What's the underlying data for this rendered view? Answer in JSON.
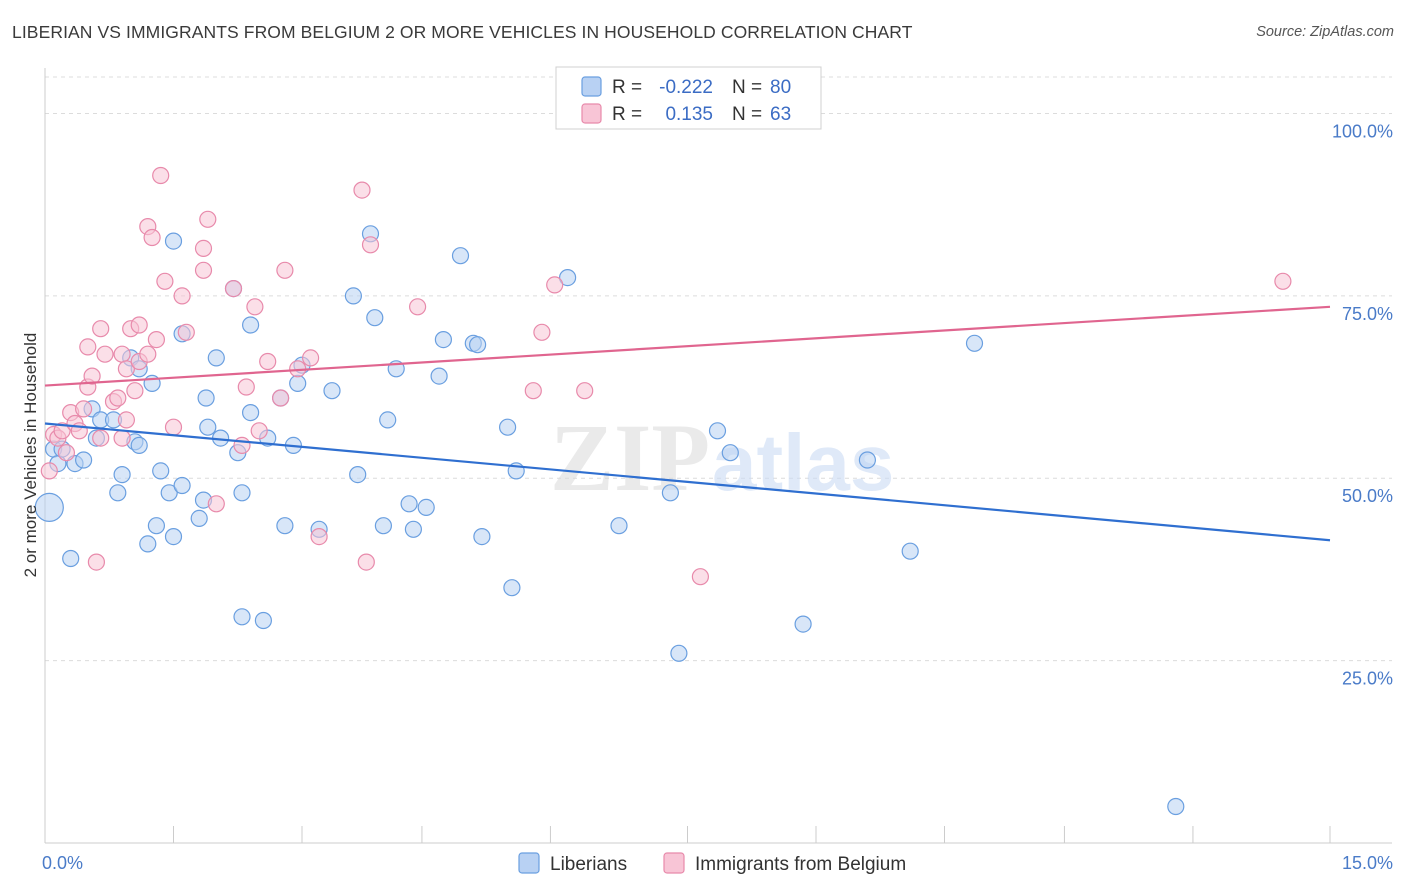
{
  "title": "LIBERIAN VS IMMIGRANTS FROM BELGIUM 2 OR MORE VEHICLES IN HOUSEHOLD CORRELATION CHART",
  "source": "Source: ZipAtlas.com",
  "watermark": {
    "zip": "ZIP",
    "atlas": "atlas"
  },
  "chart_data": {
    "type": "scatter",
    "ylabel": "2 or more Vehicles in Household",
    "xlim": [
      0,
      15
    ],
    "ylim": [
      0,
      105
    ],
    "x_ticks": [
      {
        "value": 0,
        "label": "0.0%"
      },
      {
        "value": 15,
        "label": "15.0%"
      }
    ],
    "x_minor_ticks": [
      1.5,
      3,
      4.4,
      5.9,
      7.5,
      9,
      10.5,
      11.9,
      13.4
    ],
    "y_ticks": [
      {
        "value": 25,
        "label": "25.0%"
      },
      {
        "value": 50,
        "label": "50.0%"
      },
      {
        "value": 75,
        "label": "75.0%"
      },
      {
        "value": 100,
        "label": "100.0%"
      }
    ],
    "grid": "horizontal dashed",
    "legend_stats": [
      {
        "r_label": "R =",
        "r_value": "-0.222",
        "n_label": "N =",
        "n_value": "80",
        "color": "#6a9fe0",
        "fill": "#b8d1f3"
      },
      {
        "r_label": "R =",
        "r_value": "0.135",
        "n_label": "N =",
        "n_value": "63",
        "color": "#e88aab",
        "fill": "#f8c5d6"
      }
    ],
    "series": [
      {
        "name": "Liberians",
        "color": "#6a9fe0",
        "fill": "#b8d1f3",
        "line_color": "#2f6fd0",
        "trend": [
          [
            0,
            57.5
          ],
          [
            15,
            41.5
          ]
        ],
        "points": [
          [
            0.05,
            46
          ],
          [
            0.1,
            54
          ],
          [
            0.15,
            52
          ],
          [
            0.2,
            54
          ],
          [
            0.3,
            39
          ],
          [
            0.35,
            52
          ],
          [
            0.45,
            52.5
          ],
          [
            0.55,
            59.5
          ],
          [
            0.6,
            55.5
          ],
          [
            0.65,
            58
          ],
          [
            0.8,
            58
          ],
          [
            0.85,
            48
          ],
          [
            0.9,
            50.5
          ],
          [
            1.0,
            66.5
          ],
          [
            1.05,
            55
          ],
          [
            1.1,
            54.5
          ],
          [
            1.1,
            65
          ],
          [
            1.2,
            41
          ],
          [
            1.25,
            63
          ],
          [
            1.3,
            43.5
          ],
          [
            1.35,
            51
          ],
          [
            1.45,
            48
          ],
          [
            1.5,
            42
          ],
          [
            1.5,
            82.5
          ],
          [
            1.6,
            49
          ],
          [
            1.6,
            69.8
          ],
          [
            1.8,
            44.5
          ],
          [
            1.85,
            47
          ],
          [
            1.88,
            61
          ],
          [
            1.9,
            57
          ],
          [
            2.0,
            66.5
          ],
          [
            2.05,
            55.5
          ],
          [
            2.2,
            76
          ],
          [
            2.25,
            53.5
          ],
          [
            2.3,
            31
          ],
          [
            2.3,
            48
          ],
          [
            2.4,
            71
          ],
          [
            2.4,
            59
          ],
          [
            2.55,
            30.5
          ],
          [
            2.6,
            55.5
          ],
          [
            2.75,
            61
          ],
          [
            2.8,
            43.5
          ],
          [
            2.9,
            54.5
          ],
          [
            2.95,
            63
          ],
          [
            3.0,
            65.5
          ],
          [
            3.2,
            43
          ],
          [
            3.35,
            62
          ],
          [
            3.6,
            75
          ],
          [
            3.65,
            50.5
          ],
          [
            3.8,
            83.5
          ],
          [
            3.85,
            72
          ],
          [
            3.95,
            43.5
          ],
          [
            4.0,
            58
          ],
          [
            4.1,
            65
          ],
          [
            4.25,
            46.5
          ],
          [
            4.3,
            43
          ],
          [
            4.45,
            46
          ],
          [
            4.6,
            64
          ],
          [
            4.65,
            69
          ],
          [
            4.85,
            80.5
          ],
          [
            5.0,
            68.5
          ],
          [
            5.05,
            68.3
          ],
          [
            5.1,
            42
          ],
          [
            5.4,
            57
          ],
          [
            5.45,
            35
          ],
          [
            5.5,
            51
          ],
          [
            6.1,
            77.5
          ],
          [
            6.7,
            43.5
          ],
          [
            7.3,
            48
          ],
          [
            7.4,
            26
          ],
          [
            7.85,
            56.5
          ],
          [
            8.0,
            53.5
          ],
          [
            8.85,
            30
          ],
          [
            9.6,
            52.5
          ],
          [
            10.1,
            40
          ],
          [
            10.85,
            68.5
          ],
          [
            13.2,
            5
          ]
        ]
      },
      {
        "name": "Immigrants from Belgium",
        "color": "#e88aab",
        "fill": "#f8c5d6",
        "line_color": "#e0658f",
        "trend": [
          [
            0,
            62.7
          ],
          [
            15,
            73.5
          ]
        ],
        "points": [
          [
            0.05,
            51
          ],
          [
            0.1,
            56
          ],
          [
            0.15,
            55.5
          ],
          [
            0.2,
            56.5
          ],
          [
            0.25,
            53.5
          ],
          [
            0.3,
            59
          ],
          [
            0.35,
            57.5
          ],
          [
            0.4,
            56.5
          ],
          [
            0.45,
            59.5
          ],
          [
            0.5,
            62.5
          ],
          [
            0.5,
            68
          ],
          [
            0.55,
            64
          ],
          [
            0.6,
            38.5
          ],
          [
            0.65,
            55.5
          ],
          [
            0.65,
            70.5
          ],
          [
            0.7,
            67
          ],
          [
            0.8,
            60.5
          ],
          [
            0.85,
            61
          ],
          [
            0.9,
            55.5
          ],
          [
            0.9,
            67
          ],
          [
            0.95,
            65
          ],
          [
            0.95,
            58
          ],
          [
            1.0,
            70.5
          ],
          [
            1.05,
            62
          ],
          [
            1.1,
            66
          ],
          [
            1.1,
            71
          ],
          [
            1.2,
            67
          ],
          [
            1.2,
            84.5
          ],
          [
            1.25,
            83
          ],
          [
            1.3,
            69
          ],
          [
            1.35,
            91.5
          ],
          [
            1.4,
            77
          ],
          [
            1.5,
            57
          ],
          [
            1.6,
            75
          ],
          [
            1.65,
            70
          ],
          [
            1.85,
            78.5
          ],
          [
            1.85,
            81.5
          ],
          [
            1.9,
            85.5
          ],
          [
            2.0,
            46.5
          ],
          [
            2.2,
            76
          ],
          [
            2.3,
            54.5
          ],
          [
            2.35,
            62.5
          ],
          [
            2.45,
            73.5
          ],
          [
            2.5,
            56.5
          ],
          [
            2.6,
            66
          ],
          [
            2.75,
            61
          ],
          [
            2.8,
            78.5
          ],
          [
            2.95,
            65
          ],
          [
            3.1,
            66.5
          ],
          [
            3.2,
            42
          ],
          [
            3.7,
            89.5
          ],
          [
            3.75,
            38.5
          ],
          [
            3.8,
            82
          ],
          [
            4.35,
            73.5
          ],
          [
            5.7,
            62
          ],
          [
            5.8,
            70
          ],
          [
            5.95,
            76.5
          ],
          [
            6.3,
            62
          ],
          [
            7.65,
            36.5
          ],
          [
            14.45,
            77
          ]
        ]
      }
    ]
  },
  "legend_bottom": [
    {
      "label": "Liberians",
      "color": "#6a9fe0",
      "fill": "#b8d1f3"
    },
    {
      "label": "Immigrants from Belgium",
      "color": "#e88aab",
      "fill": "#f8c5d6"
    }
  ]
}
